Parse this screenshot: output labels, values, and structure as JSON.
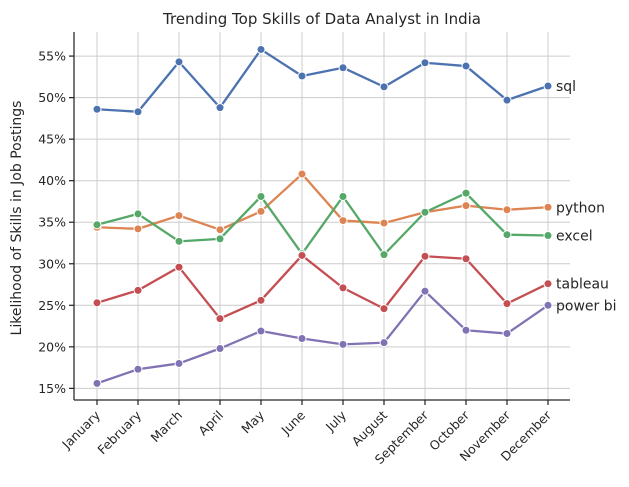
{
  "chart_data": {
    "type": "line",
    "title": "Trending Top Skills of Data Analyst in India",
    "xlabel": "",
    "ylabel": "Likelihood of Skills in Job Postings",
    "categories": [
      "January",
      "February",
      "March",
      "April",
      "May",
      "June",
      "July",
      "August",
      "September",
      "October",
      "November",
      "December"
    ],
    "yticks": [
      15,
      20,
      25,
      30,
      35,
      40,
      45,
      50,
      55
    ],
    "ytick_labels": [
      "15%",
      "20%",
      "25%",
      "30%",
      "35%",
      "40%",
      "45%",
      "50%",
      "55%"
    ],
    "ylim": [
      13.6,
      57.9
    ],
    "grid": true,
    "series": [
      {
        "name": "sql",
        "color": "#4c72b0",
        "values": [
          48.6,
          48.3,
          54.3,
          48.8,
          55.8,
          52.6,
          53.6,
          51.3,
          54.2,
          53.8,
          49.7,
          51.4
        ]
      },
      {
        "name": "python",
        "color": "#dd8452",
        "values": [
          34.4,
          34.2,
          35.8,
          34.1,
          36.3,
          40.8,
          35.2,
          34.9,
          36.2,
          37.0,
          36.5,
          36.8
        ]
      },
      {
        "name": "excel",
        "color": "#55a868",
        "values": [
          34.7,
          36.0,
          32.7,
          33.0,
          38.1,
          31.2,
          38.1,
          31.1,
          36.2,
          38.5,
          33.5,
          33.4
        ]
      },
      {
        "name": "tableau",
        "color": "#c44e52",
        "values": [
          25.3,
          26.8,
          29.6,
          23.4,
          25.6,
          31.0,
          27.1,
          24.6,
          30.9,
          30.6,
          25.2,
          27.6
        ]
      },
      {
        "name": "power bi",
        "color": "#8172b3",
        "values": [
          15.6,
          17.3,
          18.0,
          19.8,
          21.9,
          21.0,
          20.3,
          20.5,
          26.7,
          22.0,
          21.6,
          25.0
        ]
      }
    ]
  }
}
